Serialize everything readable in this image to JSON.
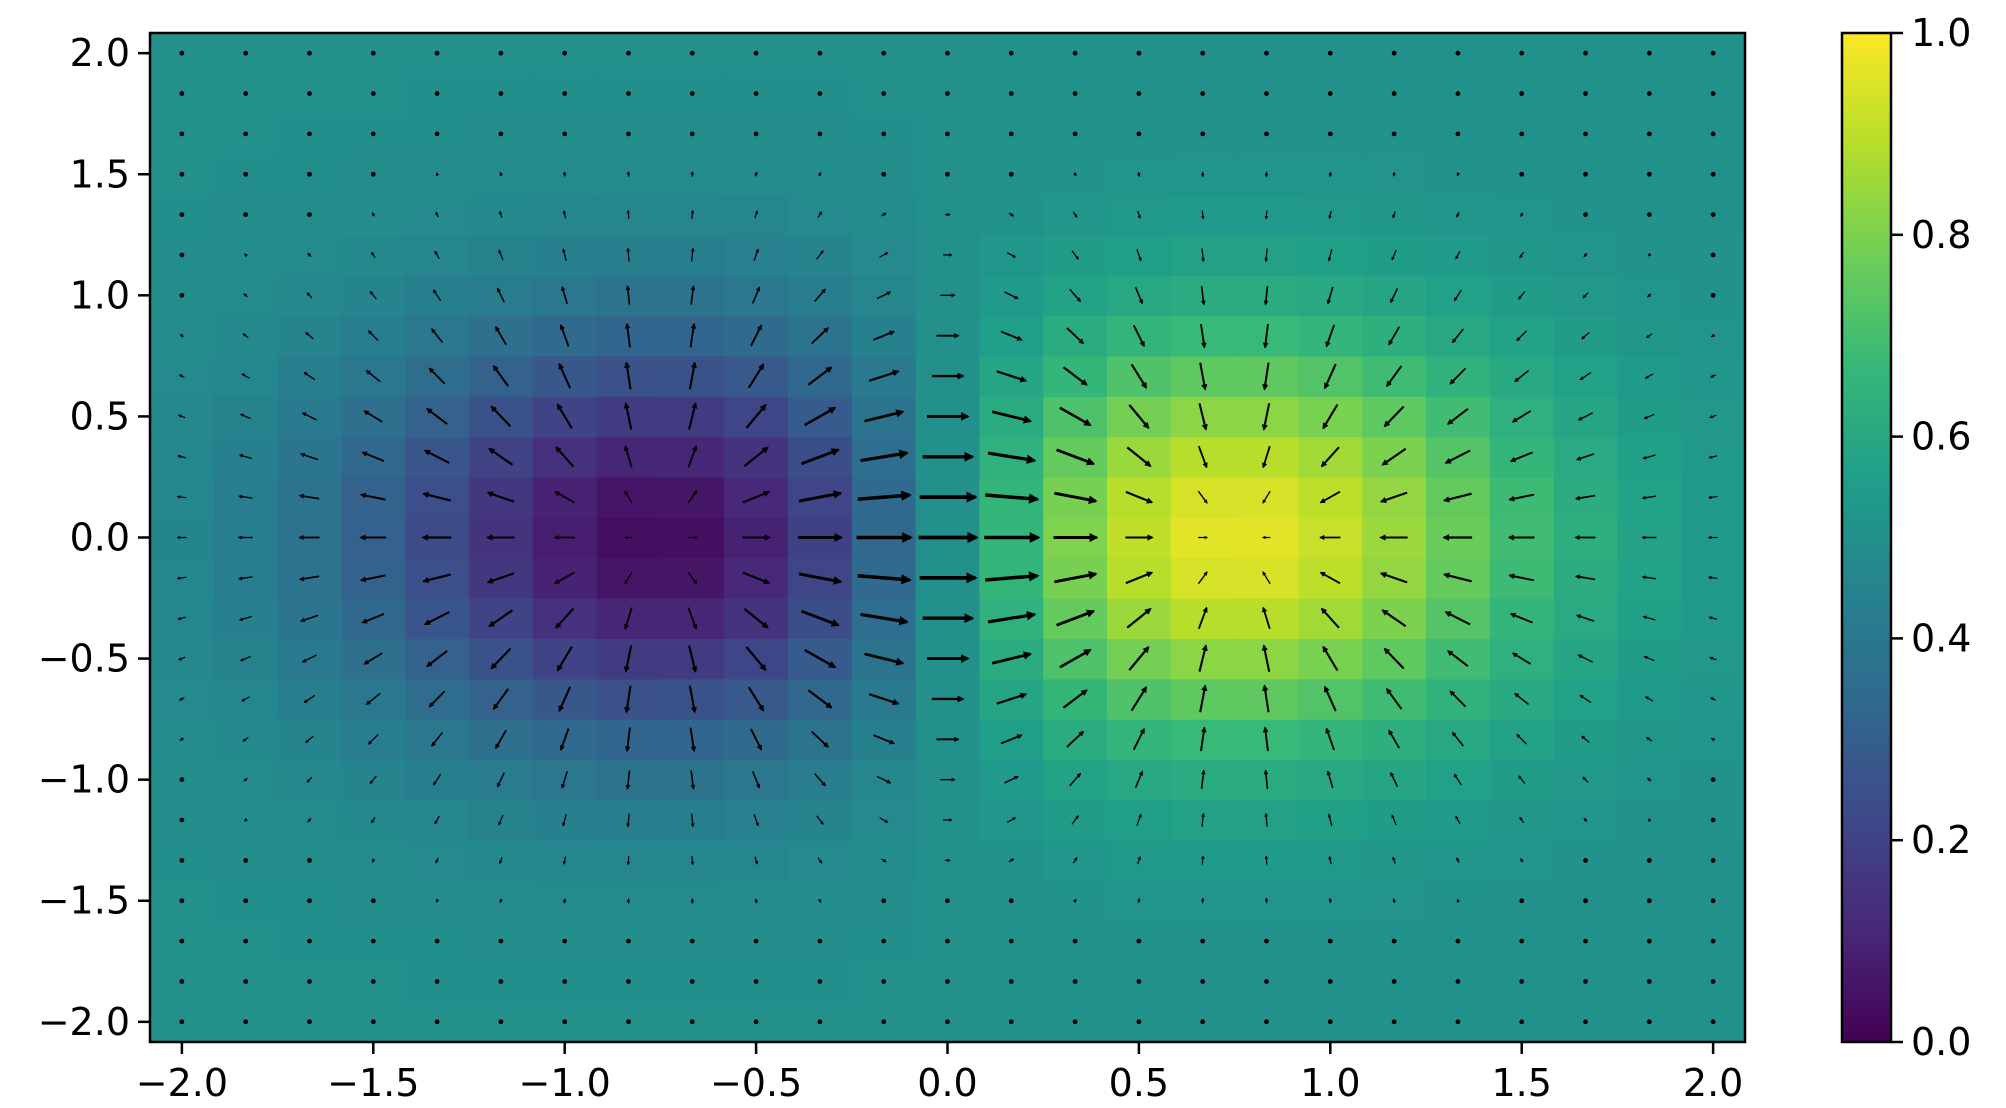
{
  "chart_data": {
    "type": "heatmap",
    "subtype": "quiver-over-heatmap",
    "title": "",
    "xlabel": "",
    "ylabel": "",
    "xlim": [
      -2.0833,
      2.0833
    ],
    "ylim": [
      -2.0833,
      2.0833
    ],
    "x_ticks": [
      -2.0,
      -1.5,
      -1.0,
      -0.5,
      0.0,
      0.5,
      1.0,
      1.5,
      2.0
    ],
    "x_tick_labels": [
      "−2.0",
      "−1.5",
      "−1.0",
      "−0.5",
      "0.0",
      "0.5",
      "1.0",
      "1.5",
      "2.0"
    ],
    "y_ticks": [
      -2.0,
      -1.5,
      -1.0,
      -0.5,
      0.0,
      0.5,
      1.0,
      1.5,
      2.0
    ],
    "y_tick_labels": [
      "−2.0",
      "−1.5",
      "−1.0",
      "−0.5",
      "0.0",
      "0.5",
      "1.0",
      "1.5",
      "2.0"
    ],
    "grid": {
      "n": 25,
      "start": -2.0,
      "stop": 2.0,
      "note": "regular 25x25 grid; color and arrows sampled at each node"
    },
    "field": {
      "sources": [
        {
          "x": -0.667,
          "y": 0.0,
          "sign": -1,
          "sigma": 0.6
        },
        {
          "x": 0.667,
          "y": 0.0,
          "sign": 1,
          "sigma": 0.6
        }
      ],
      "color_value": "0.5 + 0.5 * (exp(-r2^2/(2s^2)) - exp(-r1^2/(2s^2)))",
      "arrows": "gradient of color value"
    },
    "colormap": {
      "name": "viridis",
      "stops": [
        "#440154",
        "#482878",
        "#3e4989",
        "#31688e",
        "#26828e",
        "#1f9e89",
        "#35b779",
        "#6ece58",
        "#b5de2b",
        "#fde725"
      ]
    },
    "colorbar": {
      "min": 0.0,
      "max": 1.0,
      "ticks": [
        0.0,
        0.2,
        0.4,
        0.6,
        0.8,
        1.0
      ],
      "tick_labels": [
        "0.0",
        "0.2",
        "0.4",
        "0.6",
        "0.8",
        "1.0"
      ]
    },
    "arrow_color": "#000000"
  }
}
